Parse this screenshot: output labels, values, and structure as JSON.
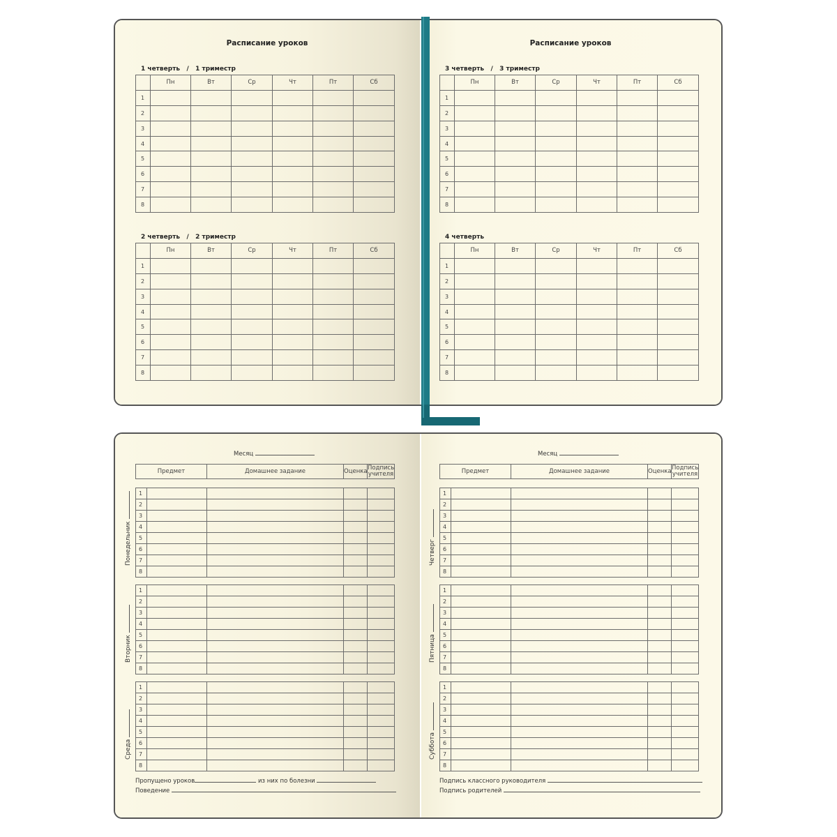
{
  "top_spread": {
    "left_page": {
      "title": "Расписание уроков",
      "blocks": [
        {
          "label": "1 четверть   /   1 триместр"
        },
        {
          "label": "2 четверть   /   2 триместр"
        }
      ]
    },
    "right_page": {
      "title": "Расписание уроков",
      "blocks": [
        {
          "label": "3 четверть   /   3 триместр"
        },
        {
          "label": "4 четверть"
        }
      ]
    },
    "days": [
      "Пн",
      "Вт",
      "Ср",
      "Чт",
      "Пт",
      "Сб"
    ],
    "lessons": [
      "1",
      "2",
      "3",
      "4",
      "5",
      "6",
      "7",
      "8"
    ]
  },
  "bottom_spread": {
    "month_label": "Месяц",
    "columns": [
      "Предмет",
      "Домашнее задание",
      "Оценка",
      "Подпись учителя"
    ],
    "lessons": [
      "1",
      "2",
      "3",
      "4",
      "5",
      "6",
      "7",
      "8"
    ],
    "left_days": [
      "Понедельник",
      "Вторник",
      "Среда"
    ],
    "right_days": [
      "Четверг",
      "Пятница",
      "Суббота"
    ],
    "left_footer": {
      "missed": "Пропущено уроков",
      "sick": "из них по болезни",
      "behavior": "Поведение"
    },
    "right_footer": {
      "teacher_sign": "Подпись классного руководителя",
      "parents_sign": "Подпись родителей"
    }
  },
  "colors": {
    "paper": "#fbf8e6",
    "cover": "#555555",
    "ribbon": "#1e7a86",
    "grid": "#6b6b6b"
  }
}
